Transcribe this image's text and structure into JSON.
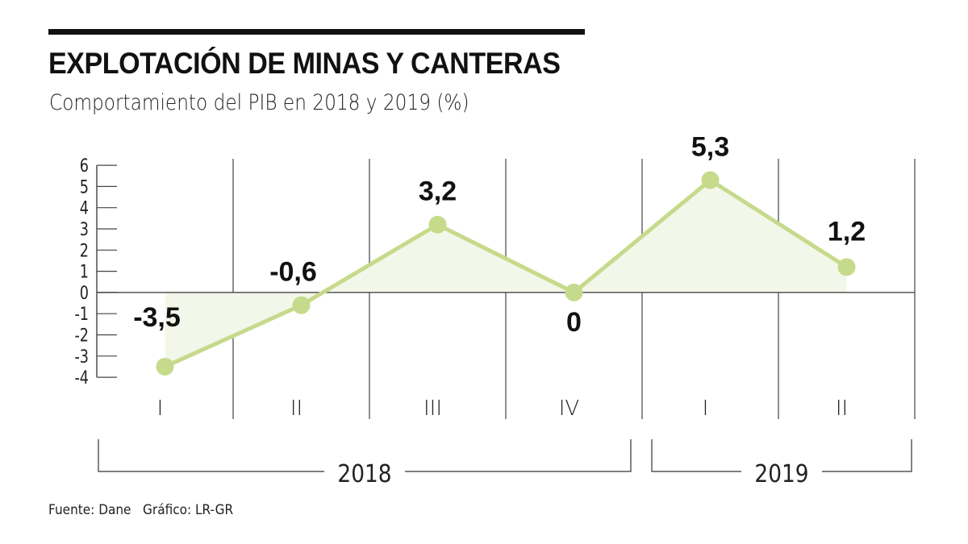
{
  "title": "EXPLOTACIÓN DE MINAS Y CANTERAS",
  "subtitle": "Comportamiento del PIB en 2018 y 2019 (%)",
  "source": "Fuente: Dane   Gráfico: LR-GR",
  "chart_data": {
    "type": "line",
    "title": "EXPLOTACIÓN DE MINAS Y CANTERAS",
    "subtitle": "Comportamiento del PIB en 2018 y 2019 (%)",
    "categories": [
      "I",
      "II",
      "III",
      "IV",
      "I",
      "II"
    ],
    "groups": [
      {
        "label": "2018",
        "categories": [
          "I",
          "II",
          "III",
          "IV"
        ]
      },
      {
        "label": "2019",
        "categories": [
          "I",
          "II"
        ]
      }
    ],
    "values": [
      -3.5,
      -0.6,
      3.2,
      0,
      5.3,
      1.2
    ],
    "data_labels": [
      "-3,5",
      "-0,6",
      "3,2",
      "0",
      "5,3",
      "1,2"
    ],
    "ylim": [
      -4,
      6
    ],
    "yticks": [
      "6",
      "5",
      "4",
      "3",
      "2",
      "1",
      "0",
      "-1",
      "-2",
      "-3",
      "-4"
    ],
    "grid": "vertical separators between quarters",
    "area_fill": true,
    "colors": {
      "line": "#c6da8c",
      "fill": "#f3f7e9",
      "text": "#111111"
    }
  }
}
